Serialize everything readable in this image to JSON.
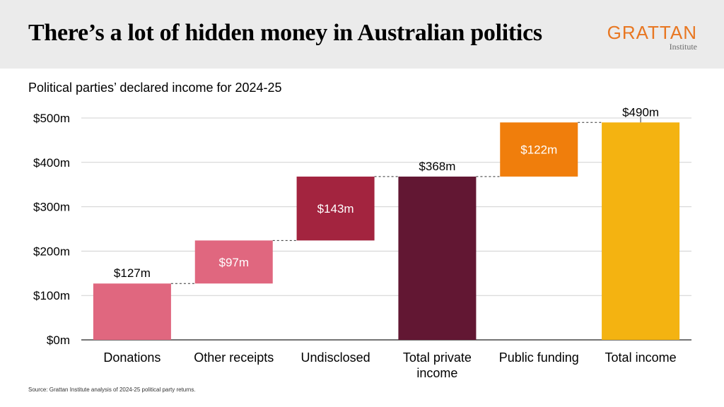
{
  "header": {
    "title": "There’s a lot of hidden money in Australian politics",
    "logo_main": "GRATTAN",
    "logo_sub": "Institute"
  },
  "source": "Source: Grattan Institute analysis of 2024-25 political party returns.",
  "colors": {
    "donations": "#e0677f",
    "other_receipts": "#e0677f",
    "undisclosed": "#a3243f",
    "total_private": "#621733",
    "public_funding": "#f07e0c",
    "total_income": "#f4b311",
    "accent": "#e87722"
  },
  "chart_data": {
    "type": "bar",
    "subtype": "waterfall",
    "title": "Political parties’ declared income for 2024-25",
    "xlabel": "",
    "ylabel": "",
    "ylim": [
      0,
      500
    ],
    "yticks": [
      "$0m",
      "$100m",
      "$200m",
      "$300m",
      "$400m",
      "$500m"
    ],
    "ytick_values": [
      0,
      100,
      200,
      300,
      400,
      500
    ],
    "grid": true,
    "categories": [
      [
        "Donations"
      ],
      [
        "Other receipts"
      ],
      [
        "Undisclosed"
      ],
      [
        "Total private",
        "income"
      ],
      [
        "Public funding"
      ],
      [
        "Total income"
      ]
    ],
    "bars": [
      {
        "start": 0,
        "end": 127,
        "label": "$127m",
        "label_pos": "above",
        "color_key": "donations"
      },
      {
        "start": 127,
        "end": 224,
        "label": "$97m",
        "label_pos": "inside",
        "color_key": "other_receipts"
      },
      {
        "start": 224,
        "end": 368,
        "label": "$143m",
        "label_pos": "inside",
        "color_key": "undisclosed"
      },
      {
        "start": 0,
        "end": 368,
        "label": "$368m",
        "label_pos": "above",
        "color_key": "total_private"
      },
      {
        "start": 368,
        "end": 490,
        "label": "$122m",
        "label_pos": "inside",
        "color_key": "public_funding"
      },
      {
        "start": 0,
        "end": 490,
        "label": "$490m",
        "label_pos": "above",
        "color_key": "total_income"
      }
    ]
  }
}
